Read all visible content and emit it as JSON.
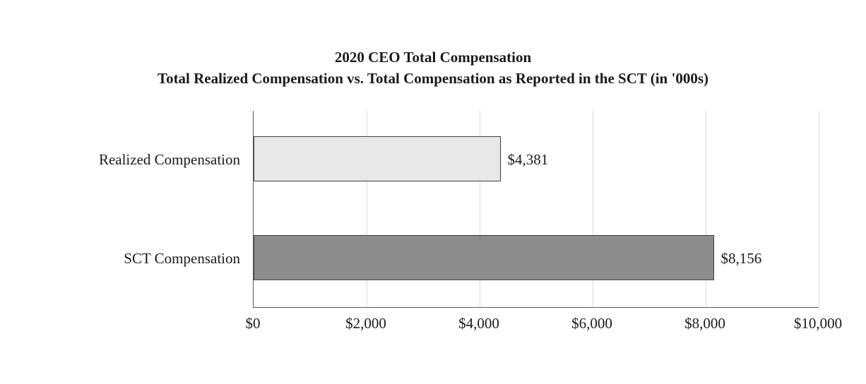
{
  "title": {
    "line1": "2020 CEO Total Compensation",
    "line2": "Total Realized Compensation vs. Total Compensation as Reported in the SCT (in '000s)"
  },
  "chart_data": {
    "type": "bar",
    "orientation": "horizontal",
    "title": "2020 CEO Total Compensation — Total Realized Compensation vs. Total Compensation as Reported in the SCT (in '000s)",
    "categories": [
      "Realized Compensation",
      "SCT Compensation"
    ],
    "values": [
      4381,
      8156
    ],
    "value_labels": [
      "$4,381",
      "$8,156"
    ],
    "xlim": [
      0,
      10000
    ],
    "x_ticks": [
      0,
      2000,
      4000,
      6000,
      8000,
      10000
    ],
    "x_tick_labels": [
      "$0",
      "$2,000",
      "$4,000",
      "$6,000",
      "$8,000",
      "$10,000"
    ],
    "grid": true,
    "legend": "none",
    "colors": {
      "bar_fills": [
        "#e8e8e8",
        "#8c8c8c"
      ],
      "bar_border": "#404040",
      "gridline": "#d9d9d9",
      "axis": "#595959",
      "text": "#1a1a1a"
    }
  }
}
